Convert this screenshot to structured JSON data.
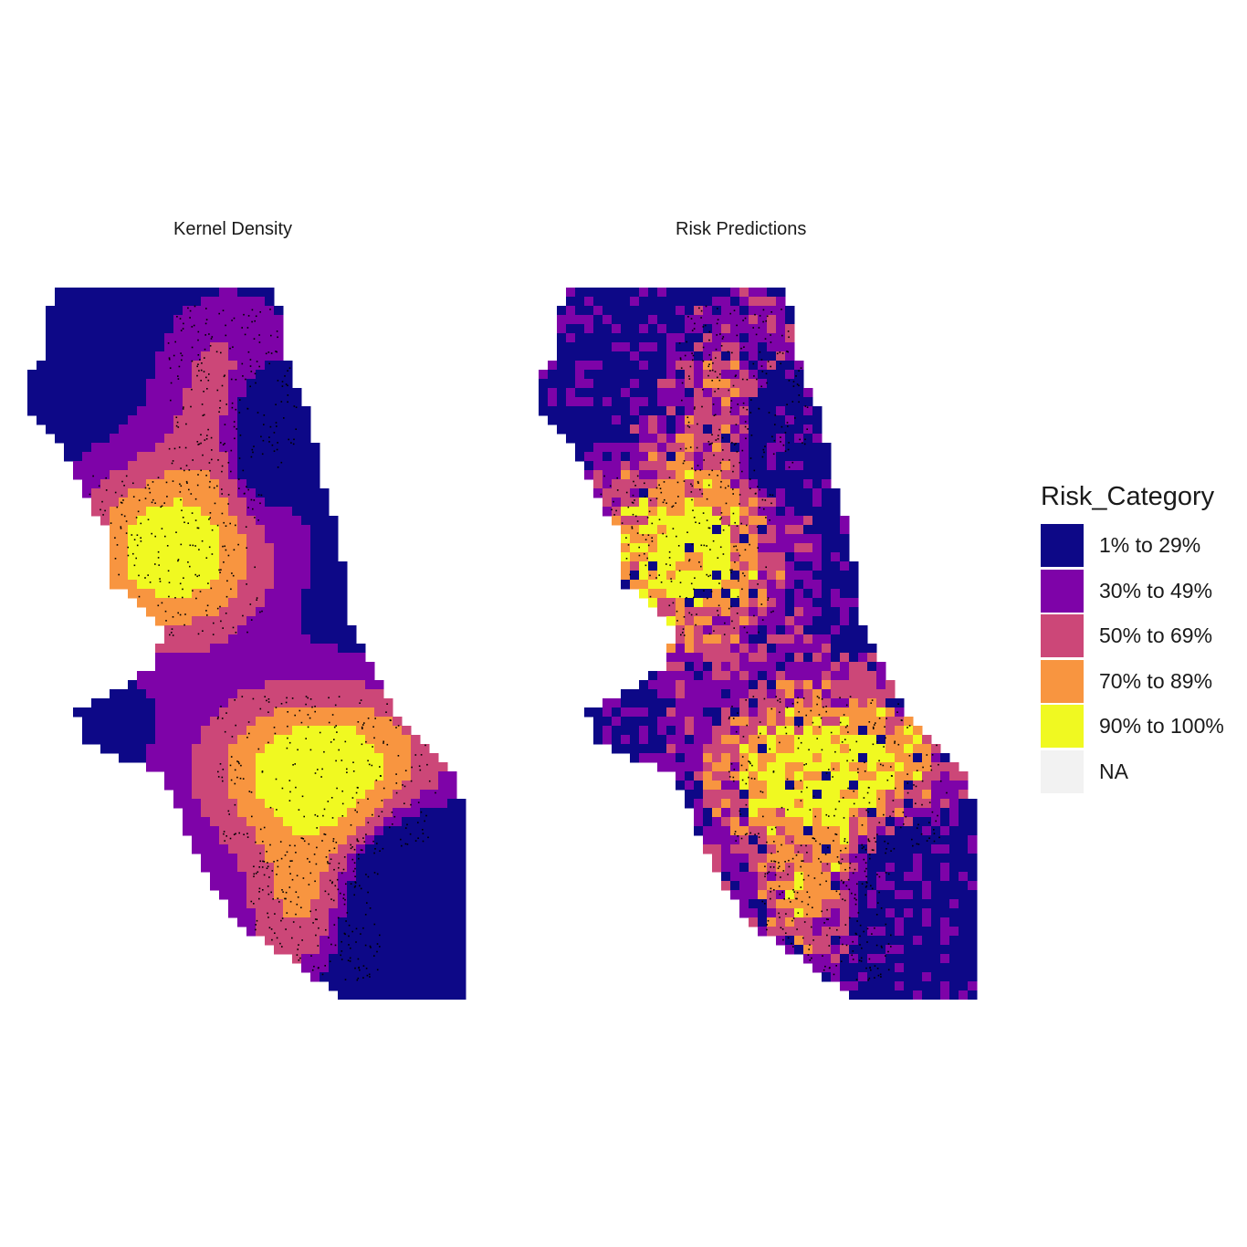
{
  "panels": {
    "left_title": "Kernel Density",
    "right_title": "Risk Predictions"
  },
  "legend": {
    "title": "Risk_Category",
    "items": [
      {
        "label": "1% to 29%",
        "color": "#0D0887"
      },
      {
        "label": "30% to 49%",
        "color": "#7E03A8"
      },
      {
        "label": "50% to 69%",
        "color": "#CC4778"
      },
      {
        "label": "70% to 89%",
        "color": "#F89540"
      },
      {
        "label": "90% to 100%",
        "color": "#F0F921"
      },
      {
        "label": "NA",
        "color": "#F2F2F2"
      }
    ]
  }
}
